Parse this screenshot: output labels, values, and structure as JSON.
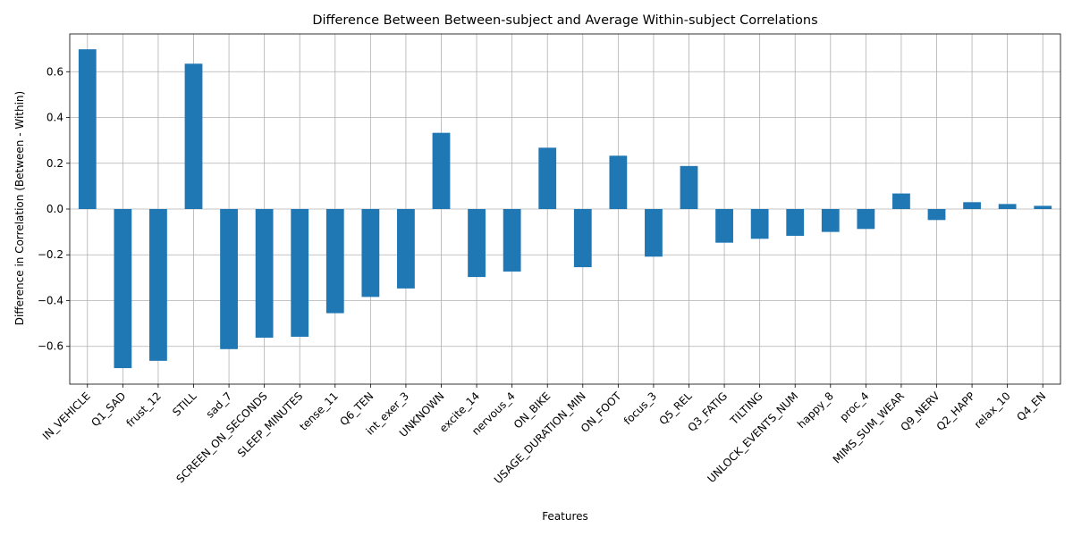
{
  "chart_data": {
    "type": "bar",
    "title": "Difference Between Between-subject and Average Within-subject Correlations",
    "xlabel": "Features",
    "ylabel": "Difference in Correlation (Between - Within)",
    "categories": [
      "IN_VEHICLE",
      "Q1_SAD",
      "frust_12",
      "STILL",
      "sad_7",
      "SCREEN_ON_SECONDS",
      "SLEEP_MINUTES",
      "tense_11",
      "Q6_TEN",
      "int_exer_3",
      "UNKNOWN",
      "excite_14",
      "nervous_4",
      "ON_BIKE",
      "USAGE_DURATION_MIN",
      "ON_FOOT",
      "focus_3",
      "Q5_REL",
      "Q3_FATIG",
      "TILTING",
      "UNLOCK_EVENTS_NUM",
      "happy_8",
      "proc_4",
      "MIMS_SUM_WEAR",
      "Q9_NERV",
      "Q2_HAPP",
      "relax_10",
      "Q4_EN"
    ],
    "values": [
      0.698,
      -0.695,
      -0.663,
      0.635,
      -0.612,
      -0.562,
      -0.558,
      -0.455,
      -0.384,
      -0.347,
      0.333,
      -0.297,
      -0.273,
      0.268,
      -0.254,
      0.233,
      -0.208,
      0.188,
      -0.147,
      -0.13,
      -0.117,
      -0.1,
      -0.087,
      0.068,
      -0.048,
      0.03,
      0.022,
      0.014
    ],
    "yticks": [
      -0.6,
      -0.4,
      -0.2,
      0.0,
      0.2,
      0.4,
      0.6
    ],
    "ytick_labels": [
      "−0.6",
      "−0.4",
      "−0.2",
      "0.0",
      "0.2",
      "0.4",
      "0.6"
    ],
    "ylim": [
      -0.765,
      0.765
    ],
    "grid": true,
    "bar_color": "#1f77b4"
  }
}
